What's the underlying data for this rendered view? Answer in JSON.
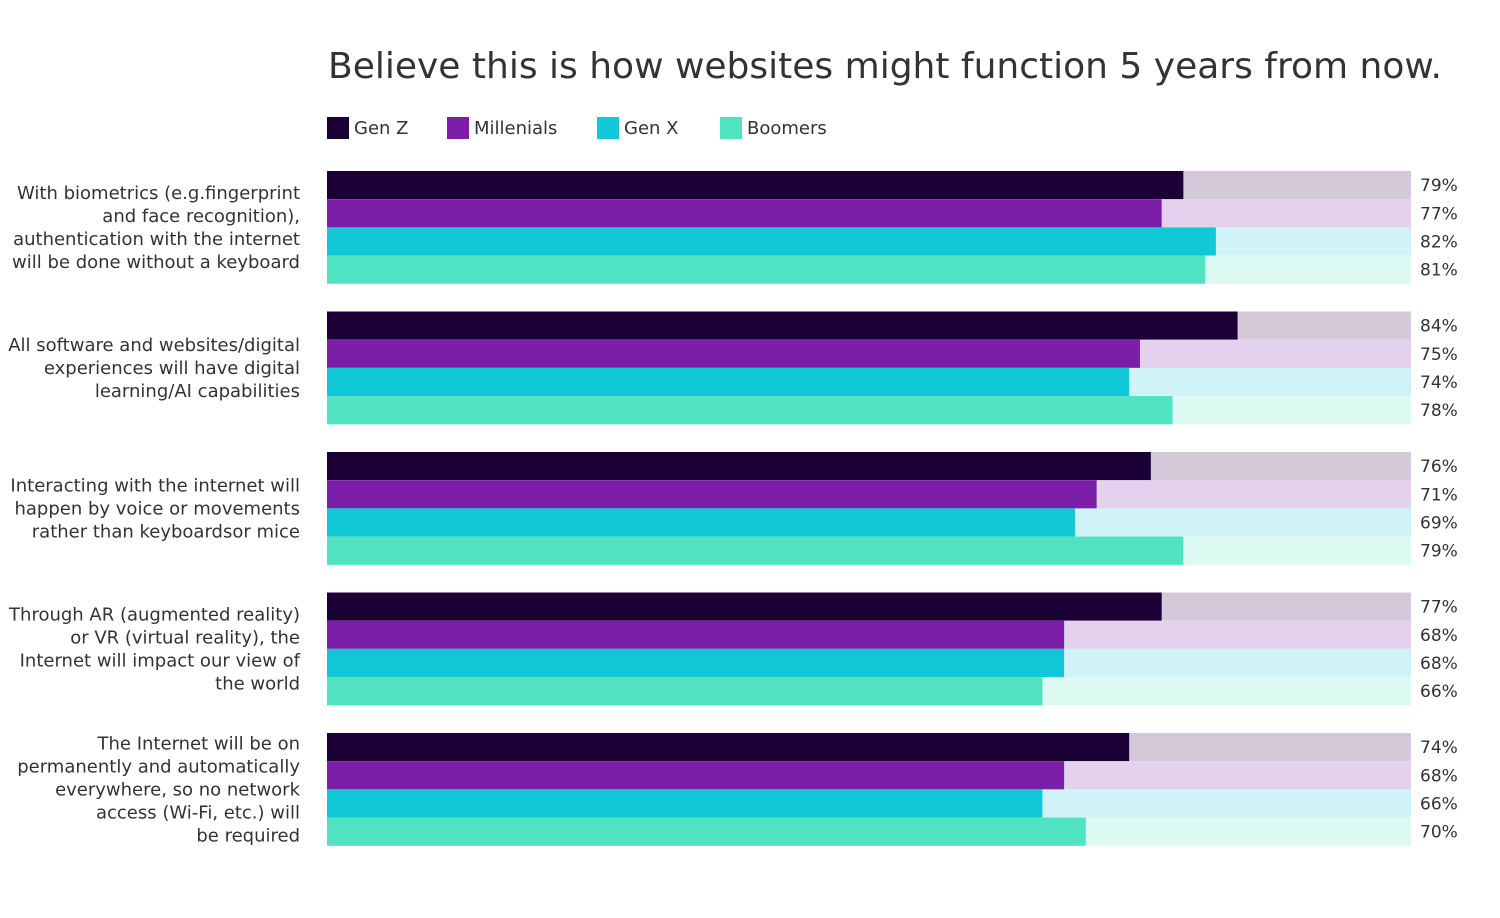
{
  "chart_data": {
    "type": "bar",
    "orientation": "horizontal",
    "title": "Believe this is how websites might function 5 years from now.",
    "xlabel": "",
    "ylabel": "",
    "xlim": [
      0,
      100
    ],
    "grid": false,
    "legend_position": "top-left",
    "value_suffix": "%",
    "categories": [
      [
        "With biometrics (e.g.fingerprint",
        "and face recognition),",
        "authentication with the internet",
        "will be done without a keyboard"
      ],
      [
        "All software and websites/digital",
        "experiences will have digital",
        "learning/AI capabilities"
      ],
      [
        "Interacting with the internet will",
        "happen by voice or movements",
        "rather than keyboardsor mice"
      ],
      [
        "Through AR (augmented reality)",
        "or VR (virtual reality), the",
        "Internet will impact our view of",
        "the world"
      ],
      [
        "The Internet will be on",
        "permanently and automatically",
        "everywhere, so no network",
        "access (Wi-Fi, etc.) will",
        "be required"
      ]
    ],
    "series": [
      {
        "name": "Gen Z",
        "color": "#1b0036",
        "track_color": "#d3c9d8",
        "values": [
          79,
          84,
          76,
          77,
          74
        ]
      },
      {
        "name": "Millenials",
        "color": "#7b1fa8",
        "track_color": "#e4d1ee",
        "values": [
          77,
          75,
          71,
          68,
          68
        ]
      },
      {
        "name": "Gen X",
        "color": "#10c8d6",
        "track_color": "#cff3f6",
        "values": [
          82,
          74,
          69,
          68,
          66
        ]
      },
      {
        "name": "Boomers",
        "color": "#50e3c2",
        "track_color": "#dcf9f2",
        "values": [
          81,
          78,
          79,
          66,
          70
        ]
      }
    ]
  }
}
